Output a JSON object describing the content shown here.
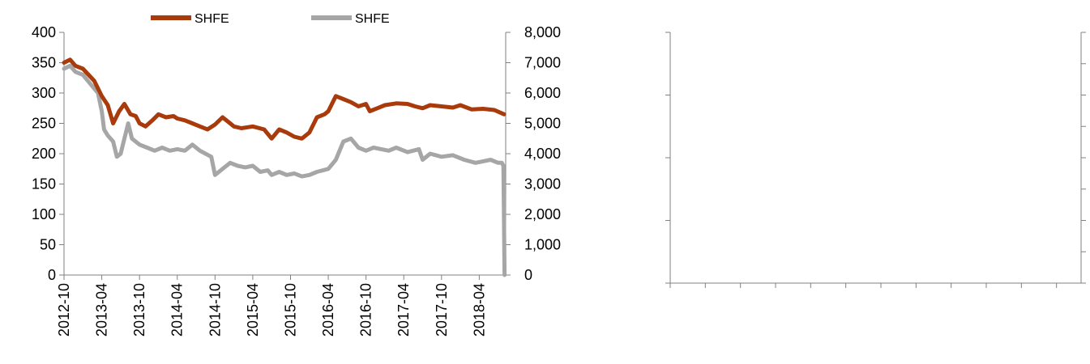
{
  "chart_data": [
    {
      "type": "line",
      "title": "",
      "xlabel": "",
      "ylabel": "",
      "legend_position": "top",
      "x_categories": [
        "2012-10",
        "2013-04",
        "2013-10",
        "2014-04",
        "2014-10",
        "2015-04",
        "2015-10",
        "2016-04",
        "2016-10",
        "2017-04",
        "2017-10",
        "2018-04"
      ],
      "y_left": {
        "range": [
          0,
          400
        ],
        "ticks": [
          "0",
          "50",
          "100",
          "150",
          "200",
          "250",
          "300",
          "350",
          "400"
        ]
      },
      "y_right": {
        "range": [
          0,
          8000
        ],
        "ticks": [
          "0",
          "1,000",
          "2,000",
          "3,000",
          "4,000",
          "5,000",
          "6,000",
          "7,000",
          "8,000"
        ]
      },
      "series": [
        {
          "name": "SHFE",
          "axis": "left",
          "color": "#a93a0c",
          "x": [
            2012.75,
            2012.83,
            2012.9,
            2013.0,
            2013.15,
            2013.25,
            2013.33,
            2013.4,
            2013.48,
            2013.55,
            2013.63,
            2013.7,
            2013.75,
            2013.83,
            2013.92,
            2014.0,
            2014.1,
            2014.2,
            2014.25,
            2014.35,
            2014.45,
            2014.55,
            2014.65,
            2014.75,
            2014.85,
            2014.95,
            2015.0,
            2015.1,
            2015.25,
            2015.4,
            2015.5,
            2015.6,
            2015.7,
            2015.8,
            2015.9,
            2016.0,
            2016.1,
            2016.2,
            2016.25,
            2016.35,
            2016.45,
            2016.55,
            2016.65,
            2016.75,
            2016.8,
            2016.9,
            2017.0,
            2017.15,
            2017.3,
            2017.4,
            2017.5,
            2017.6,
            2017.75,
            2017.9,
            2018.0,
            2018.15,
            2018.3,
            2018.45,
            2018.58
          ],
          "values": [
            350,
            355,
            345,
            340,
            320,
            295,
            280,
            250,
            270,
            282,
            265,
            262,
            250,
            245,
            255,
            265,
            260,
            262,
            258,
            255,
            250,
            245,
            240,
            248,
            260,
            250,
            245,
            242,
            245,
            240,
            225,
            240,
            235,
            228,
            225,
            235,
            260,
            265,
            270,
            295,
            290,
            285,
            278,
            282,
            270,
            275,
            280,
            283,
            282,
            278,
            275,
            280,
            278,
            276,
            280,
            273,
            274,
            272,
            265
          ]
        },
        {
          "name": "SHFE",
          "axis": "right",
          "color": "#a6a6a6",
          "x": [
            2012.75,
            2012.83,
            2012.9,
            2013.0,
            2013.1,
            2013.2,
            2013.25,
            2013.28,
            2013.33,
            2013.4,
            2013.45,
            2013.5,
            2013.55,
            2013.6,
            2013.65,
            2013.75,
            2013.85,
            2013.95,
            2014.05,
            2014.15,
            2014.25,
            2014.35,
            2014.45,
            2014.55,
            2014.7,
            2014.75,
            2014.85,
            2014.95,
            2015.05,
            2015.15,
            2015.25,
            2015.35,
            2015.45,
            2015.5,
            2015.6,
            2015.7,
            2015.8,
            2015.9,
            2016.0,
            2016.1,
            2016.25,
            2016.35,
            2016.45,
            2016.55,
            2016.65,
            2016.75,
            2016.85,
            2016.95,
            2017.05,
            2017.15,
            2017.3,
            2017.45,
            2017.5,
            2017.6,
            2017.75,
            2017.9,
            2018.05,
            2018.2,
            2018.3,
            2018.4,
            2018.5,
            2018.55,
            2018.57,
            2018.585
          ],
          "values": [
            6800,
            6900,
            6700,
            6600,
            6300,
            6000,
            5400,
            4800,
            4600,
            4400,
            3900,
            4000,
            4500,
            5000,
            4500,
            4300,
            4200,
            4100,
            4200,
            4100,
            4150,
            4100,
            4300,
            4100,
            3900,
            3300,
            3500,
            3700,
            3600,
            3550,
            3600,
            3400,
            3450,
            3300,
            3400,
            3300,
            3350,
            3250,
            3300,
            3400,
            3500,
            3800,
            4400,
            4500,
            4200,
            4100,
            4200,
            4150,
            4100,
            4200,
            4050,
            4150,
            3800,
            4000,
            3900,
            3950,
            3800,
            3700,
            3750,
            3800,
            3700,
            3700,
            3600,
            0
          ]
        }
      ]
    },
    {
      "type": "line",
      "title": "",
      "xlabel": "",
      "ylabel": "",
      "x_categories": [
        "",
        "",
        "",
        "",
        "",
        "",
        "",
        "",
        "",
        "",
        "",
        ""
      ],
      "series": []
    }
  ]
}
